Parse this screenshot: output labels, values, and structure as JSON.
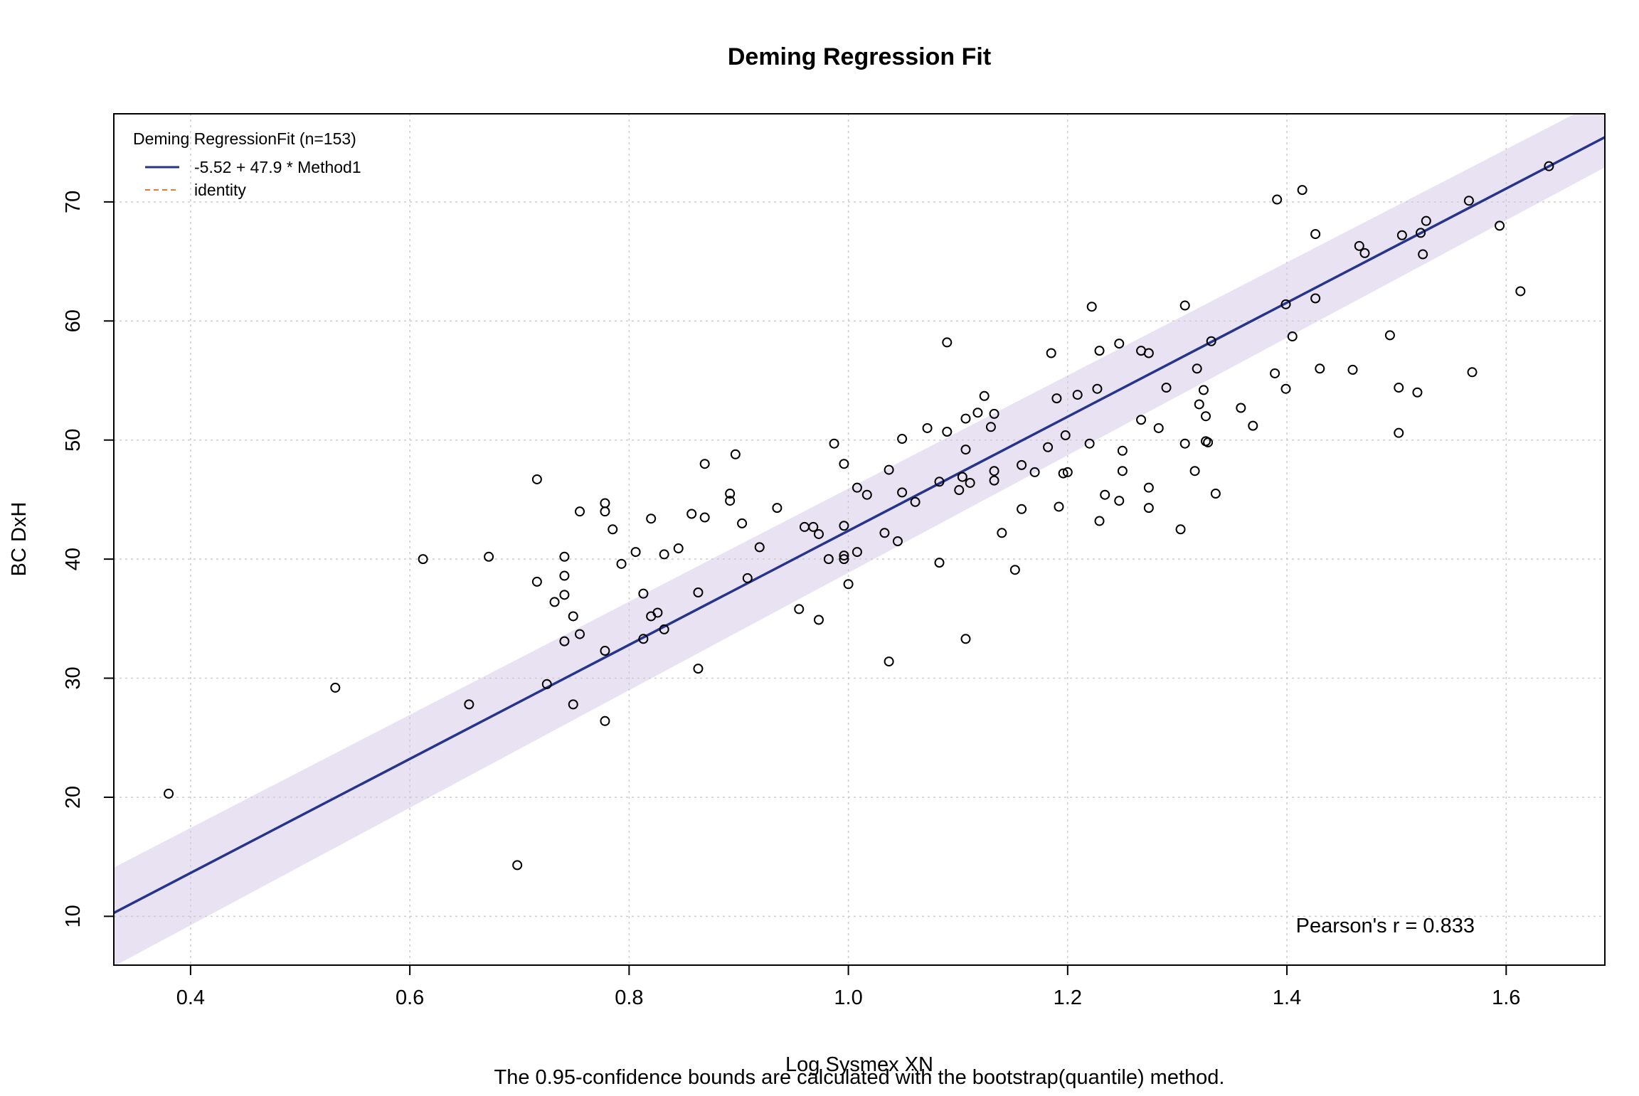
{
  "chart_data": {
    "type": "scatter",
    "title": "Deming Regression Fit",
    "xlabel": "Log Sysmex XN",
    "ylabel": "BC DxH",
    "subtitle": "The 0.95-confidence bounds are calculated with the bootstrap(quantile) method.",
    "xlim": [
      0.33,
      1.69
    ],
    "ylim": [
      5.9,
      77.4
    ],
    "x_ticks": [
      0.4,
      0.6,
      0.8,
      1.0,
      1.2,
      1.4,
      1.6
    ],
    "x_tick_labels": [
      "0.4",
      "0.6",
      "0.8",
      "1.0",
      "1.2",
      "1.4",
      "1.6"
    ],
    "y_ticks": [
      10,
      20,
      30,
      40,
      50,
      60,
      70
    ],
    "y_tick_labels": [
      "10",
      "20",
      "30",
      "40",
      "50",
      "60",
      "70"
    ],
    "grid": true,
    "legend": {
      "position": "top-left",
      "title": "Deming RegressionFit (n=153)",
      "entries": [
        {
          "label": "-5.52 + 47.9 * Method1",
          "color": "#27348b",
          "style": "solid"
        },
        {
          "label": "identity",
          "color": "#e07b39",
          "style": "dashed"
        }
      ]
    },
    "regression": {
      "intercept": -5.52,
      "slope": 47.9,
      "color": "#27348b"
    },
    "confidence_band": {
      "level": 0.95,
      "color": "#e8e2f3",
      "x": [
        0.33,
        1.69
      ],
      "lower": [
        5.8,
        72.9
      ],
      "upper": [
        14.1,
        78.7
      ]
    },
    "annotation": "Pearson's r = 0.833",
    "points": [
      {
        "x": 0.38,
        "y": 20.3
      },
      {
        "x": 0.532,
        "y": 29.2
      },
      {
        "x": 0.612,
        "y": 40.0
      },
      {
        "x": 0.654,
        "y": 27.8
      },
      {
        "x": 0.672,
        "y": 40.2
      },
      {
        "x": 0.698,
        "y": 14.3
      },
      {
        "x": 0.716,
        "y": 46.7
      },
      {
        "x": 0.716,
        "y": 38.1
      },
      {
        "x": 0.725,
        "y": 29.5
      },
      {
        "x": 0.732,
        "y": 36.4
      },
      {
        "x": 0.741,
        "y": 40.2
      },
      {
        "x": 0.741,
        "y": 38.6
      },
      {
        "x": 0.741,
        "y": 37.0
      },
      {
        "x": 0.741,
        "y": 33.1
      },
      {
        "x": 0.749,
        "y": 35.2
      },
      {
        "x": 0.749,
        "y": 27.8
      },
      {
        "x": 0.755,
        "y": 44.0
      },
      {
        "x": 0.755,
        "y": 33.7
      },
      {
        "x": 0.778,
        "y": 44.7
      },
      {
        "x": 0.778,
        "y": 44.0
      },
      {
        "x": 0.778,
        "y": 32.3
      },
      {
        "x": 0.778,
        "y": 26.4
      },
      {
        "x": 0.785,
        "y": 42.5
      },
      {
        "x": 0.793,
        "y": 39.6
      },
      {
        "x": 0.806,
        "y": 40.6
      },
      {
        "x": 0.813,
        "y": 37.1
      },
      {
        "x": 0.813,
        "y": 33.3
      },
      {
        "x": 0.82,
        "y": 43.4
      },
      {
        "x": 0.82,
        "y": 35.2
      },
      {
        "x": 0.826,
        "y": 35.5
      },
      {
        "x": 0.832,
        "y": 40.4
      },
      {
        "x": 0.832,
        "y": 34.1
      },
      {
        "x": 0.845,
        "y": 40.9
      },
      {
        "x": 0.857,
        "y": 43.8
      },
      {
        "x": 0.863,
        "y": 37.2
      },
      {
        "x": 0.863,
        "y": 30.8
      },
      {
        "x": 0.869,
        "y": 48.0
      },
      {
        "x": 0.869,
        "y": 43.5
      },
      {
        "x": 0.892,
        "y": 45.5
      },
      {
        "x": 0.892,
        "y": 44.9
      },
      {
        "x": 0.897,
        "y": 48.8
      },
      {
        "x": 0.903,
        "y": 43.0
      },
      {
        "x": 0.908,
        "y": 38.4
      },
      {
        "x": 0.919,
        "y": 41.0
      },
      {
        "x": 0.935,
        "y": 44.3
      },
      {
        "x": 0.955,
        "y": 35.8
      },
      {
        "x": 0.96,
        "y": 42.7
      },
      {
        "x": 0.968,
        "y": 42.7
      },
      {
        "x": 0.973,
        "y": 42.1
      },
      {
        "x": 0.973,
        "y": 34.9
      },
      {
        "x": 0.982,
        "y": 40.0
      },
      {
        "x": 0.987,
        "y": 49.7
      },
      {
        "x": 0.996,
        "y": 48.0
      },
      {
        "x": 0.996,
        "y": 42.8
      },
      {
        "x": 0.996,
        "y": 40.3
      },
      {
        "x": 0.996,
        "y": 40.0
      },
      {
        "x": 1.0,
        "y": 37.9
      },
      {
        "x": 1.008,
        "y": 46.0
      },
      {
        "x": 1.008,
        "y": 40.6
      },
      {
        "x": 1.017,
        "y": 45.4
      },
      {
        "x": 1.033,
        "y": 42.2
      },
      {
        "x": 1.037,
        "y": 47.5
      },
      {
        "x": 1.037,
        "y": 31.4
      },
      {
        "x": 1.045,
        "y": 41.5
      },
      {
        "x": 1.049,
        "y": 50.1
      },
      {
        "x": 1.049,
        "y": 45.6
      },
      {
        "x": 1.061,
        "y": 44.8
      },
      {
        "x": 1.072,
        "y": 51.0
      },
      {
        "x": 1.083,
        "y": 46.5
      },
      {
        "x": 1.083,
        "y": 39.7
      },
      {
        "x": 1.09,
        "y": 58.2
      },
      {
        "x": 1.09,
        "y": 50.7
      },
      {
        "x": 1.101,
        "y": 45.8
      },
      {
        "x": 1.104,
        "y": 46.9
      },
      {
        "x": 1.107,
        "y": 51.8
      },
      {
        "x": 1.107,
        "y": 49.2
      },
      {
        "x": 1.107,
        "y": 33.3
      },
      {
        "x": 1.111,
        "y": 46.4
      },
      {
        "x": 1.118,
        "y": 52.3
      },
      {
        "x": 1.124,
        "y": 53.7
      },
      {
        "x": 1.13,
        "y": 51.1
      },
      {
        "x": 1.133,
        "y": 52.2
      },
      {
        "x": 1.133,
        "y": 47.4
      },
      {
        "x": 1.133,
        "y": 46.6
      },
      {
        "x": 1.14,
        "y": 42.2
      },
      {
        "x": 1.152,
        "y": 39.1
      },
      {
        "x": 1.158,
        "y": 47.9
      },
      {
        "x": 1.158,
        "y": 44.2
      },
      {
        "x": 1.17,
        "y": 47.3
      },
      {
        "x": 1.182,
        "y": 49.4
      },
      {
        "x": 1.185,
        "y": 57.3
      },
      {
        "x": 1.19,
        "y": 53.5
      },
      {
        "x": 1.192,
        "y": 44.4
      },
      {
        "x": 1.196,
        "y": 47.2
      },
      {
        "x": 1.198,
        "y": 50.4
      },
      {
        "x": 1.2,
        "y": 47.3
      },
      {
        "x": 1.209,
        "y": 53.8
      },
      {
        "x": 1.22,
        "y": 49.7
      },
      {
        "x": 1.222,
        "y": 61.2
      },
      {
        "x": 1.227,
        "y": 54.3
      },
      {
        "x": 1.229,
        "y": 57.5
      },
      {
        "x": 1.229,
        "y": 43.2
      },
      {
        "x": 1.234,
        "y": 45.4
      },
      {
        "x": 1.247,
        "y": 58.1
      },
      {
        "x": 1.247,
        "y": 44.9
      },
      {
        "x": 1.25,
        "y": 49.1
      },
      {
        "x": 1.25,
        "y": 47.4
      },
      {
        "x": 1.267,
        "y": 57.5
      },
      {
        "x": 1.267,
        "y": 51.7
      },
      {
        "x": 1.274,
        "y": 57.3
      },
      {
        "x": 1.274,
        "y": 46.0
      },
      {
        "x": 1.274,
        "y": 44.3
      },
      {
        "x": 1.283,
        "y": 51.0
      },
      {
        "x": 1.29,
        "y": 54.4
      },
      {
        "x": 1.303,
        "y": 42.5
      },
      {
        "x": 1.307,
        "y": 61.3
      },
      {
        "x": 1.307,
        "y": 49.7
      },
      {
        "x": 1.316,
        "y": 47.4
      },
      {
        "x": 1.318,
        "y": 56.0
      },
      {
        "x": 1.32,
        "y": 53.0
      },
      {
        "x": 1.324,
        "y": 54.2
      },
      {
        "x": 1.326,
        "y": 52.0
      },
      {
        "x": 1.326,
        "y": 49.9
      },
      {
        "x": 1.328,
        "y": 49.8
      },
      {
        "x": 1.331,
        "y": 58.3
      },
      {
        "x": 1.335,
        "y": 45.5
      },
      {
        "x": 1.358,
        "y": 52.7
      },
      {
        "x": 1.369,
        "y": 51.2
      },
      {
        "x": 1.389,
        "y": 55.6
      },
      {
        "x": 1.391,
        "y": 70.2
      },
      {
        "x": 1.399,
        "y": 61.4
      },
      {
        "x": 1.399,
        "y": 54.3
      },
      {
        "x": 1.405,
        "y": 58.7
      },
      {
        "x": 1.414,
        "y": 71.0
      },
      {
        "x": 1.426,
        "y": 67.3
      },
      {
        "x": 1.426,
        "y": 61.9
      },
      {
        "x": 1.43,
        "y": 56.0
      },
      {
        "x": 1.46,
        "y": 55.9
      },
      {
        "x": 1.466,
        "y": 66.3
      },
      {
        "x": 1.471,
        "y": 65.7
      },
      {
        "x": 1.494,
        "y": 58.8
      },
      {
        "x": 1.502,
        "y": 54.4
      },
      {
        "x": 1.502,
        "y": 50.6
      },
      {
        "x": 1.505,
        "y": 67.2
      },
      {
        "x": 1.519,
        "y": 54.0
      },
      {
        "x": 1.522,
        "y": 67.4
      },
      {
        "x": 1.524,
        "y": 65.6
      },
      {
        "x": 1.527,
        "y": 68.4
      },
      {
        "x": 1.566,
        "y": 70.1
      },
      {
        "x": 1.569,
        "y": 55.7
      },
      {
        "x": 1.594,
        "y": 68.0
      },
      {
        "x": 1.613,
        "y": 62.5
      },
      {
        "x": 1.639,
        "y": 73.0
      }
    ]
  }
}
